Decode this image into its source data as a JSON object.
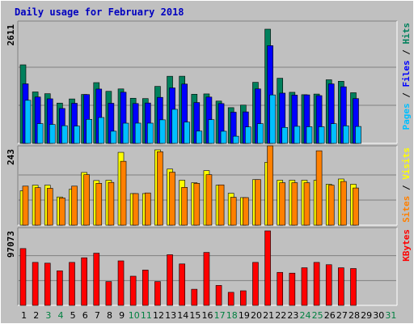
{
  "chart_data": {
    "type": "bar",
    "title": "Daily usage for February 2018",
    "x": [
      "1",
      "2",
      "3",
      "4",
      "5",
      "6",
      "7",
      "8",
      "9",
      "10",
      "11",
      "12",
      "13",
      "14",
      "15",
      "16",
      "17",
      "18",
      "19",
      "20",
      "21",
      "22",
      "23",
      "24",
      "25",
      "26",
      "27",
      "28",
      "29",
      "30",
      "31"
    ],
    "weekend_days": [
      "3",
      "4",
      "10",
      "11",
      "17",
      "18",
      "24",
      "25",
      "31"
    ],
    "panels": [
      {
        "id": "hits",
        "ymax_label": "2611",
        "ymax": 2611,
        "right_labels": [
          "Pages",
          "Files",
          "Hits"
        ],
        "right_sep": " / ",
        "series": [
          {
            "name": "Hits",
            "color": "#00805c",
            "values": [
              1796,
              1176,
              1136,
              921,
              1016,
              1119,
              1389,
              1190,
              1245,
              1032,
              1024,
              1303,
              1534,
              1535,
              1123,
              1131,
              967,
              817,
              875,
              1396,
              2611,
              1489,
              1168,
              1113,
              1128,
              1454,
              1420,
              1158,
              0,
              0,
              0
            ]
          },
          {
            "name": "Files",
            "color": "#0000ff",
            "values": [
              1361,
              1060,
              1019,
              798,
              917,
              1116,
              1242,
              917,
              1170,
              911,
              923,
              1052,
              1268,
              1356,
              934,
              1059,
              910,
              713,
              720,
              1245,
              2234,
              1149,
              1103,
              1109,
              1092,
              1360,
              1294,
              1024,
              0,
              0,
              0
            ]
          },
          {
            "name": "Pages",
            "color": "#00bfff",
            "values": [
              985,
              452,
              433,
              404,
              395,
              550,
              592,
              279,
              462,
              463,
              463,
              539,
              779,
              486,
              281,
              542,
              278,
              164,
              376,
              451,
              1108,
              365,
              390,
              380,
              380,
              450,
              400,
              387,
              0,
              0,
              0
            ]
          }
        ]
      },
      {
        "id": "visits",
        "ymax_label": "243",
        "ymax": 243,
        "right_labels": [
          "Sites",
          "Visits"
        ],
        "right_sep": " / ",
        "series": [
          {
            "name": "Visits",
            "color": "#ffff00",
            "values": [
              111,
              129,
              129,
              91,
              116,
              170,
              144,
              145,
              235,
              102,
              102,
              243,
              181,
              145,
              137,
              176,
              129,
              103,
              89,
              147,
              203,
              145,
              145,
              145,
              145,
              132,
              149,
              132,
              0,
              0,
              0
            ]
          },
          {
            "name": "Sites",
            "color": "#ff8000",
            "values": [
              126,
              121,
              119,
              88,
              126,
              163,
              135,
              138,
              206,
              102,
              104,
              237,
              171,
              122,
              135,
              163,
              130,
              90,
              89,
              147,
              256,
              137,
              137,
              137,
              240,
              129,
              141,
              120,
              0,
              0,
              0
            ]
          }
        ]
      },
      {
        "id": "kbytes",
        "ymax_label": "97073",
        "ymax": 97073,
        "right_labels": [
          "KBytes"
        ],
        "right_sep": "",
        "series": [
          {
            "name": "KBytes",
            "color": "#ff0000",
            "values": [
              74000,
              56000,
              55000,
              45000,
              56000,
              62000,
              68000,
              31000,
              58000,
              38000,
              46000,
              31000,
              66000,
              54000,
              21000,
              69000,
              26000,
              17000,
              19000,
              56000,
              97073,
              43000,
              42000,
              49000,
              56000,
              53000,
              49000,
              48000,
              0,
              0,
              0
            ]
          }
        ]
      }
    ],
    "colors": {
      "background": "#c0c0c0",
      "panel": "#c0c0c0",
      "grid": "#808080",
      "title": "#0000c0",
      "weekday_label": "#000000",
      "weekend_label": "#008040"
    }
  }
}
